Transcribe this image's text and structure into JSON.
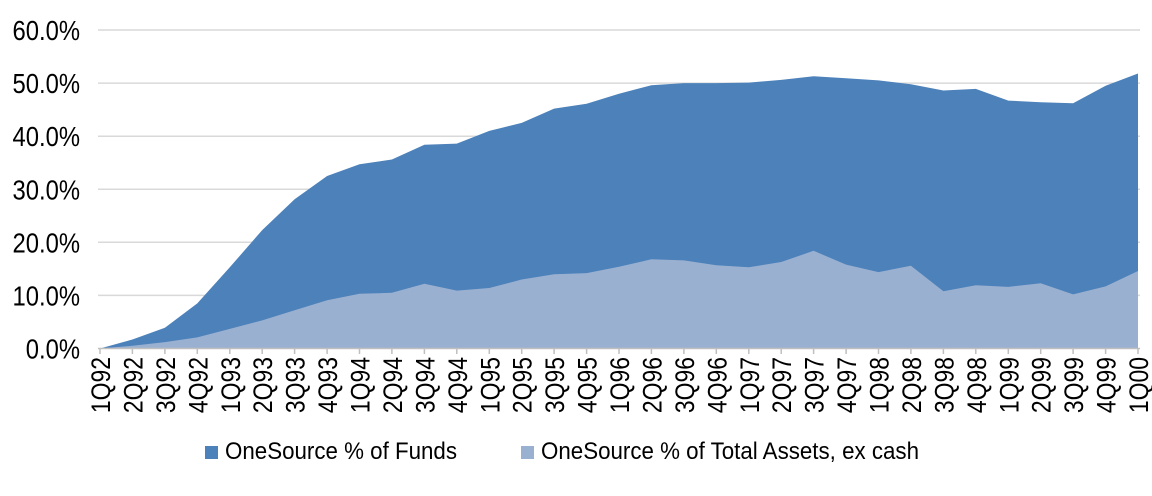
{
  "chart_data": {
    "type": "area",
    "title": "",
    "xlabel": "",
    "ylabel": "",
    "overlaid": true,
    "grid": true,
    "legend_position": "bottom",
    "background_color": "#ffffff",
    "grid_color": "#d9d9d9",
    "axis_color": "#bfbfbf",
    "text_color": "#000000",
    "categories": [
      "1Q92",
      "2Q92",
      "3Q92",
      "4Q92",
      "1Q93",
      "2Q93",
      "3Q93",
      "4Q93",
      "1Q94",
      "2Q94",
      "3Q94",
      "4Q94",
      "1Q95",
      "2Q95",
      "3Q95",
      "4Q95",
      "1Q96",
      "2Q96",
      "3Q96",
      "4Q96",
      "1Q97",
      "2Q97",
      "3Q97",
      "4Q97",
      "1Q98",
      "2Q98",
      "3Q98",
      "4Q98",
      "1Q99",
      "2Q99",
      "3Q99",
      "4Q99",
      "1Q00"
    ],
    "series": [
      {
        "name": "OneSource % of Funds",
        "color": "#4c81ba",
        "values": [
          0.0,
          1.7,
          3.9,
          8.5,
          15.3,
          22.3,
          28.1,
          32.5,
          34.7,
          35.6,
          38.4,
          38.6,
          41.0,
          42.5,
          45.2,
          46.1,
          48.0,
          49.6,
          50.0,
          50.0,
          50.1,
          50.6,
          51.3,
          50.9,
          50.5,
          49.8,
          48.6,
          48.9,
          46.7,
          46.4,
          46.2,
          49.5,
          51.8
        ]
      },
      {
        "name": "OneSource % of Total Assets, ex cash",
        "color": "#9ab0d1",
        "values": [
          0.0,
          0.5,
          1.2,
          2.1,
          3.7,
          5.3,
          7.2,
          9.1,
          10.3,
          10.5,
          12.2,
          10.9,
          11.4,
          13.0,
          14.0,
          14.2,
          15.4,
          16.8,
          16.6,
          15.7,
          15.3,
          16.3,
          18.4,
          15.8,
          14.4,
          15.6,
          10.8,
          11.9,
          11.6,
          12.3,
          10.2,
          11.7,
          14.6
        ]
      }
    ],
    "y_axis": {
      "min": 0,
      "max": 60,
      "step": 10,
      "tick_labels": [
        "0.0%",
        "10.0%",
        "20.0%",
        "30.0%",
        "40.0%",
        "50.0%",
        "60.0%"
      ]
    }
  }
}
